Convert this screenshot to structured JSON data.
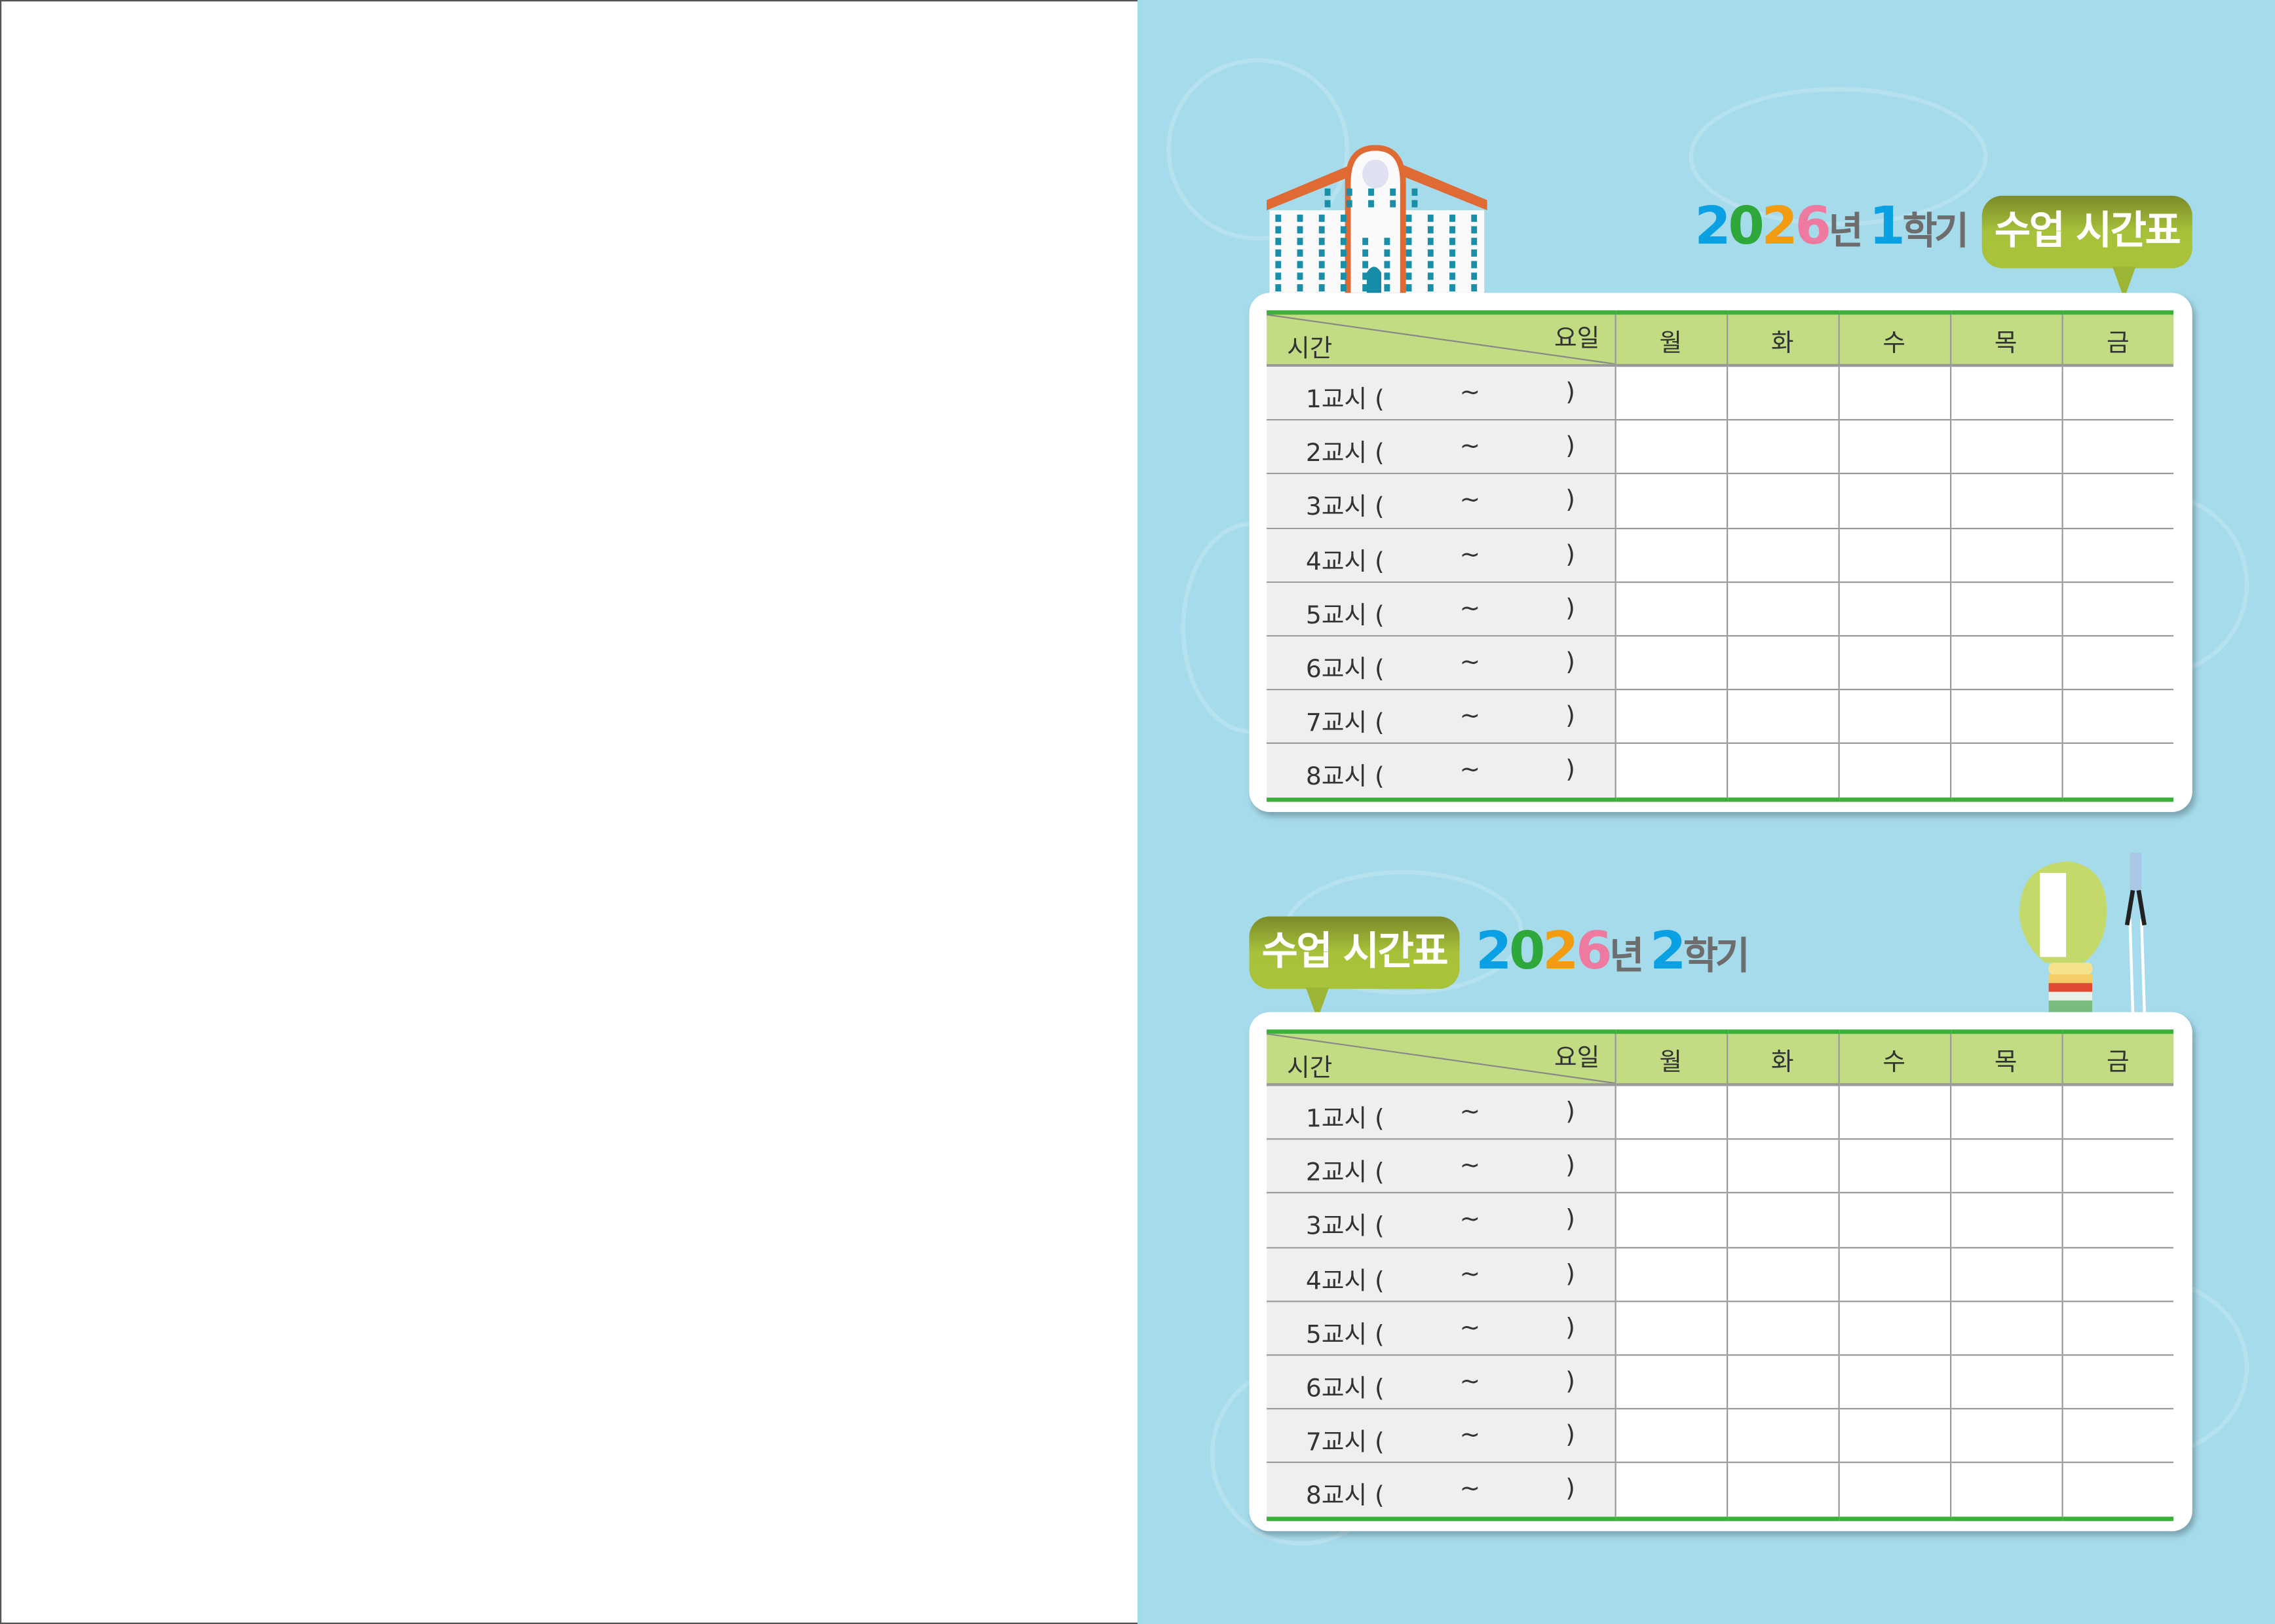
{
  "colors": {
    "background": "#a6dbeb",
    "header": "#c2dc84",
    "accent_green": "#3cb03a",
    "bubble": "#a9c23b",
    "digit_2": "#0aa0e4",
    "digit_0": "#2ea83a",
    "digit_2b": "#f39c0f",
    "digit_6": "#ef7aa0"
  },
  "table_header": {
    "time": "시간",
    "day": "요일",
    "days": [
      "월",
      "화",
      "수",
      "목",
      "금"
    ]
  },
  "periods": [
    "1교시 (",
    "2교시 (",
    "3교시 (",
    "4교시 (",
    "5교시 (",
    "6교시 (",
    "7교시 (",
    "8교시 ("
  ],
  "tilde": "~",
  "close": ")",
  "semester1": {
    "year": "2026",
    "year_suffix": "년",
    "term": "1",
    "term_suffix": "학기",
    "bubble": "수업 시간표"
  },
  "semester2": {
    "year": "2026",
    "year_suffix": "년",
    "term": "2",
    "term_suffix": "학기",
    "bubble": "수업 시간표"
  },
  "icons": [
    "school-building-icon",
    "lightbulb-number-one-icon"
  ]
}
